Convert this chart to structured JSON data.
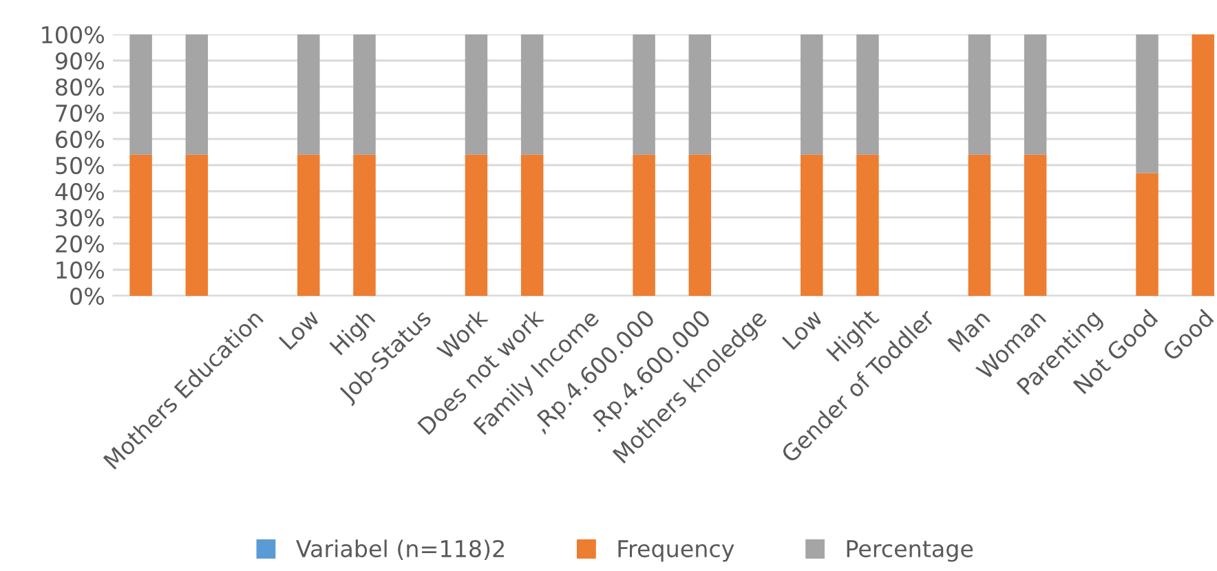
{
  "chart_data": {
    "type": "bar",
    "stacked": true,
    "categories": [
      null,
      null,
      "Mothers Education",
      "Low",
      "High",
      "Job-Status",
      "Work",
      "Does not work",
      "Family Income",
      ",Rp.4.600.000",
      ".Rp.4.600.000",
      "Mothers knoledge",
      "Low",
      "Hight",
      "Gender of Toddler",
      "Man",
      "Woman",
      "Parenting",
      "Not Good",
      "Good"
    ],
    "series": [
      {
        "name": "Variabel (n=118)2",
        "color": "#5b9bd5",
        "values": [
          null,
          null,
          null,
          null,
          null,
          null,
          null,
          null,
          null,
          null,
          null,
          null,
          null,
          null,
          null,
          null,
          null,
          null,
          null,
          null
        ]
      },
      {
        "name": "Frequency",
        "color": "#ed7d31",
        "values": [
          54,
          54,
          null,
          54,
          54,
          null,
          54,
          54,
          null,
          54,
          54,
          null,
          54,
          54,
          null,
          54,
          54,
          null,
          47,
          100
        ]
      },
      {
        "name": "Percentage",
        "color": "#a5a5a5",
        "values": [
          46,
          46,
          null,
          46,
          46,
          null,
          46,
          46,
          null,
          46,
          46,
          null,
          46,
          46,
          null,
          46,
          46,
          null,
          53,
          0
        ]
      }
    ],
    "ylim": [
      0,
      100
    ],
    "yticks": [
      {
        "value": 0,
        "label": "0%"
      },
      {
        "value": 10,
        "label": "10%"
      },
      {
        "value": 20,
        "label": "20%"
      },
      {
        "value": 30,
        "label": "30%"
      },
      {
        "value": 40,
        "label": "40%"
      },
      {
        "value": 50,
        "label": "50%"
      },
      {
        "value": 60,
        "label": "60%"
      },
      {
        "value": 70,
        "label": "70%"
      },
      {
        "value": 80,
        "label": "80%"
      },
      {
        "value": 90,
        "label": "90%"
      },
      {
        "value": 100,
        "label": "100%"
      }
    ],
    "grid": "y",
    "legend": "bottom",
    "marker": "square"
  }
}
